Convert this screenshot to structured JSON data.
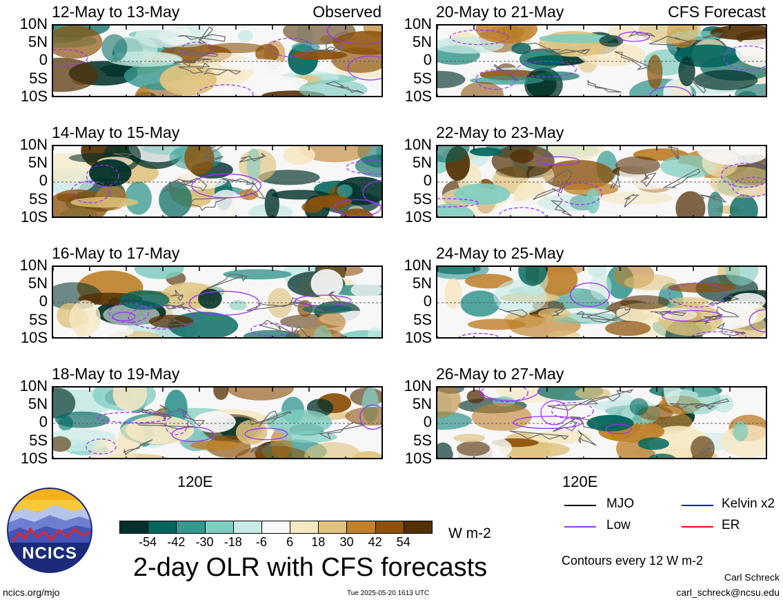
{
  "colors": {
    "scale": [
      "#01312a",
      "#01665e",
      "#35978f",
      "#80cdc1",
      "#c7eae5",
      "#f7f7f7",
      "#f6e8c3",
      "#dfc27d",
      "#bf812d",
      "#8c510a",
      "#543005"
    ],
    "mjo": "#000000",
    "low": "#9b30ff",
    "kelvin": "#0000ff",
    "er": "#ff0000"
  },
  "panels": [
    {
      "id": "p1",
      "title": "12-May to 13-May",
      "tag": "Observed",
      "seed": 11
    },
    {
      "id": "p2",
      "title": "14-May to 15-May",
      "tag": "",
      "seed": 23
    },
    {
      "id": "p3",
      "title": "16-May to 17-May",
      "tag": "",
      "seed": 37
    },
    {
      "id": "p4",
      "title": "18-May to 19-May",
      "tag": "",
      "seed": 41
    },
    {
      "id": "p5",
      "title": "20-May to 21-May",
      "tag": "CFS Forecast",
      "seed": 53
    },
    {
      "id": "p6",
      "title": "22-May to 23-May",
      "tag": "",
      "seed": 67
    },
    {
      "id": "p7",
      "title": "24-May to 25-May",
      "tag": "",
      "seed": 71
    },
    {
      "id": "p8",
      "title": "26-May to 27-May",
      "tag": "",
      "seed": 83
    }
  ],
  "lat_labels": [
    "10N",
    "5N",
    "0",
    "5S",
    "10S"
  ],
  "lon_label": "120E",
  "colorbar": {
    "labels": [
      "-54",
      "-42",
      "-30",
      "-18",
      "-6",
      "6",
      "18",
      "30",
      "42",
      "54"
    ],
    "units": "W m-2"
  },
  "legend": {
    "mjo": "MJO",
    "kelvin": "Kelvin x2",
    "low": "Low",
    "er": "ER",
    "contours": "Contours every 12 W m-2"
  },
  "logo": {
    "text": "NCICS"
  },
  "main_title": "2-day OLR with CFS forecasts",
  "footer": {
    "left": "ncics.org/mjo",
    "center": "Tue 2025-05-20 1613 UTC",
    "author": "Carl Schreck",
    "email": "carl_schreck@ncsu.edu"
  }
}
